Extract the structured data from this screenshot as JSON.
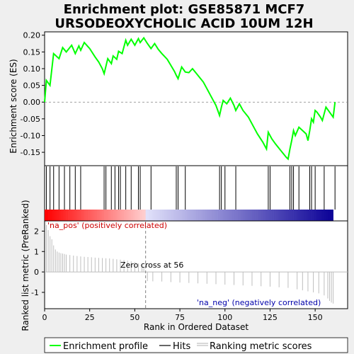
{
  "chart_data": {
    "type": "line",
    "title_line1": "Enrichment plot: GSE85871 MCF7",
    "title_line2": "URSODEOXYCHOLIC ACID 10UM 12H",
    "es_ylabel": "Enrichment score (ES)",
    "rank_ylabel": "Ranked list metric (PreRanked)",
    "xlabel": "Rank in Ordered Dataset",
    "xlim": [
      0,
      168
    ],
    "es_ylim": [
      -0.19,
      0.21
    ],
    "rank_ylim": [
      -1.8,
      2.5
    ],
    "x_ticks": [
      0,
      25,
      50,
      75,
      100,
      125,
      150
    ],
    "es_ticks": [
      0.2,
      0.15,
      0.1,
      0.05,
      0.0,
      -0.05,
      -0.1,
      -0.15
    ],
    "es_tick_labels": [
      "0.20",
      "0.15",
      "0.10",
      "0.05",
      "0.00",
      "-0.05",
      "-0.10",
      "-0.15"
    ],
    "rank_ticks": [
      2,
      1,
      0,
      -1
    ],
    "pos_label": "'na_pos' (positively correlated)",
    "neg_label": "'na_neg' (negatively correlated)",
    "zero_cross_label": "Zero cross at 56",
    "zero_cross": 56,
    "colors": {
      "es_line": "#00ff00",
      "hits": "#000000",
      "ranking": "#bebebe",
      "pos_text": "#cc0000",
      "neg_text": "#0000aa"
    },
    "enrichment_profile": {
      "x": [
        0,
        1,
        3,
        5,
        8,
        10,
        12,
        15,
        17,
        19,
        20,
        22,
        25,
        28,
        30,
        32,
        33,
        35,
        37,
        38,
        40,
        41,
        43,
        45,
        46,
        48,
        50,
        52,
        53,
        55,
        57,
        59,
        61,
        63,
        65,
        68,
        70,
        72,
        73,
        74,
        76,
        78,
        80,
        82,
        85,
        88,
        90,
        92,
        95,
        96,
        97,
        98,
        99,
        101,
        103,
        105,
        106,
        108,
        110,
        113,
        116,
        118,
        121,
        123,
        124,
        126,
        128,
        131,
        134,
        135,
        136,
        137,
        138,
        139,
        141,
        143,
        145,
        146,
        147,
        148,
        149,
        150,
        151,
        153,
        154,
        156,
        158,
        160,
        161
      ],
      "y": [
        0.0,
        0.065,
        0.05,
        0.145,
        0.13,
        0.163,
        0.15,
        0.17,
        0.145,
        0.168,
        0.155,
        0.178,
        0.16,
        0.135,
        0.12,
        0.1,
        0.085,
        0.13,
        0.115,
        0.138,
        0.128,
        0.152,
        0.145,
        0.185,
        0.17,
        0.188,
        0.17,
        0.19,
        0.178,
        0.192,
        0.175,
        0.16,
        0.175,
        0.158,
        0.145,
        0.128,
        0.11,
        0.092,
        0.08,
        0.07,
        0.105,
        0.09,
        0.088,
        0.1,
        0.08,
        0.06,
        0.04,
        0.02,
        -0.01,
        -0.025,
        -0.04,
        -0.015,
        0.005,
        -0.005,
        0.012,
        -0.01,
        -0.025,
        -0.005,
        -0.025,
        -0.045,
        -0.075,
        -0.095,
        -0.12,
        -0.14,
        -0.09,
        -0.11,
        -0.125,
        -0.145,
        -0.165,
        -0.17,
        -0.14,
        -0.115,
        -0.085,
        -0.1,
        -0.075,
        -0.085,
        -0.095,
        -0.115,
        -0.085,
        -0.05,
        -0.06,
        -0.025,
        -0.03,
        -0.045,
        -0.055,
        -0.015,
        -0.03,
        -0.045,
        0.0
      ]
    },
    "hits": [
      1,
      3,
      5,
      8,
      11,
      14,
      17,
      20,
      33,
      34,
      37,
      39,
      41,
      42,
      45,
      48,
      52,
      53,
      59,
      73,
      74,
      78,
      97,
      98,
      100,
      106,
      124,
      125,
      136,
      137,
      138,
      141,
      147,
      148,
      150,
      155,
      161
    ],
    "ranking_metric": {
      "x": [
        1,
        2,
        3,
        4,
        5,
        6,
        7,
        8,
        9,
        10,
        11,
        12,
        14,
        16,
        18,
        20,
        22,
        24,
        26,
        28,
        30,
        32,
        34,
        36,
        38,
        40,
        42,
        44,
        46,
        48,
        50,
        52,
        54,
        55,
        57,
        60,
        65,
        70,
        75,
        80,
        85,
        90,
        95,
        100,
        105,
        110,
        115,
        120,
        125,
        130,
        135,
        140,
        143,
        146,
        149,
        152,
        155,
        157,
        158,
        159,
        160
      ],
      "y": [
        2.3,
        2.05,
        1.75,
        1.6,
        1.3,
        1.1,
        1.0,
        0.95,
        0.92,
        0.9,
        0.88,
        0.85,
        0.83,
        0.8,
        0.78,
        0.76,
        0.74,
        0.73,
        0.72,
        0.7,
        0.69,
        0.68,
        0.67,
        0.66,
        0.64,
        0.62,
        0.6,
        0.58,
        0.55,
        0.52,
        0.48,
        0.42,
        0.35,
        0.25,
        -0.45,
        -0.46,
        -0.47,
        -0.5,
        -0.52,
        -0.54,
        -0.56,
        -0.58,
        -0.6,
        -0.62,
        -0.64,
        -0.66,
        -0.68,
        -0.7,
        -0.72,
        -0.75,
        -0.78,
        -0.85,
        -0.9,
        -0.95,
        -1.0,
        -1.05,
        -1.15,
        -1.3,
        -1.42,
        -1.5,
        -1.55
      ]
    },
    "legend": [
      "Enrichment profile",
      "Hits",
      "Ranking metric scores"
    ]
  }
}
